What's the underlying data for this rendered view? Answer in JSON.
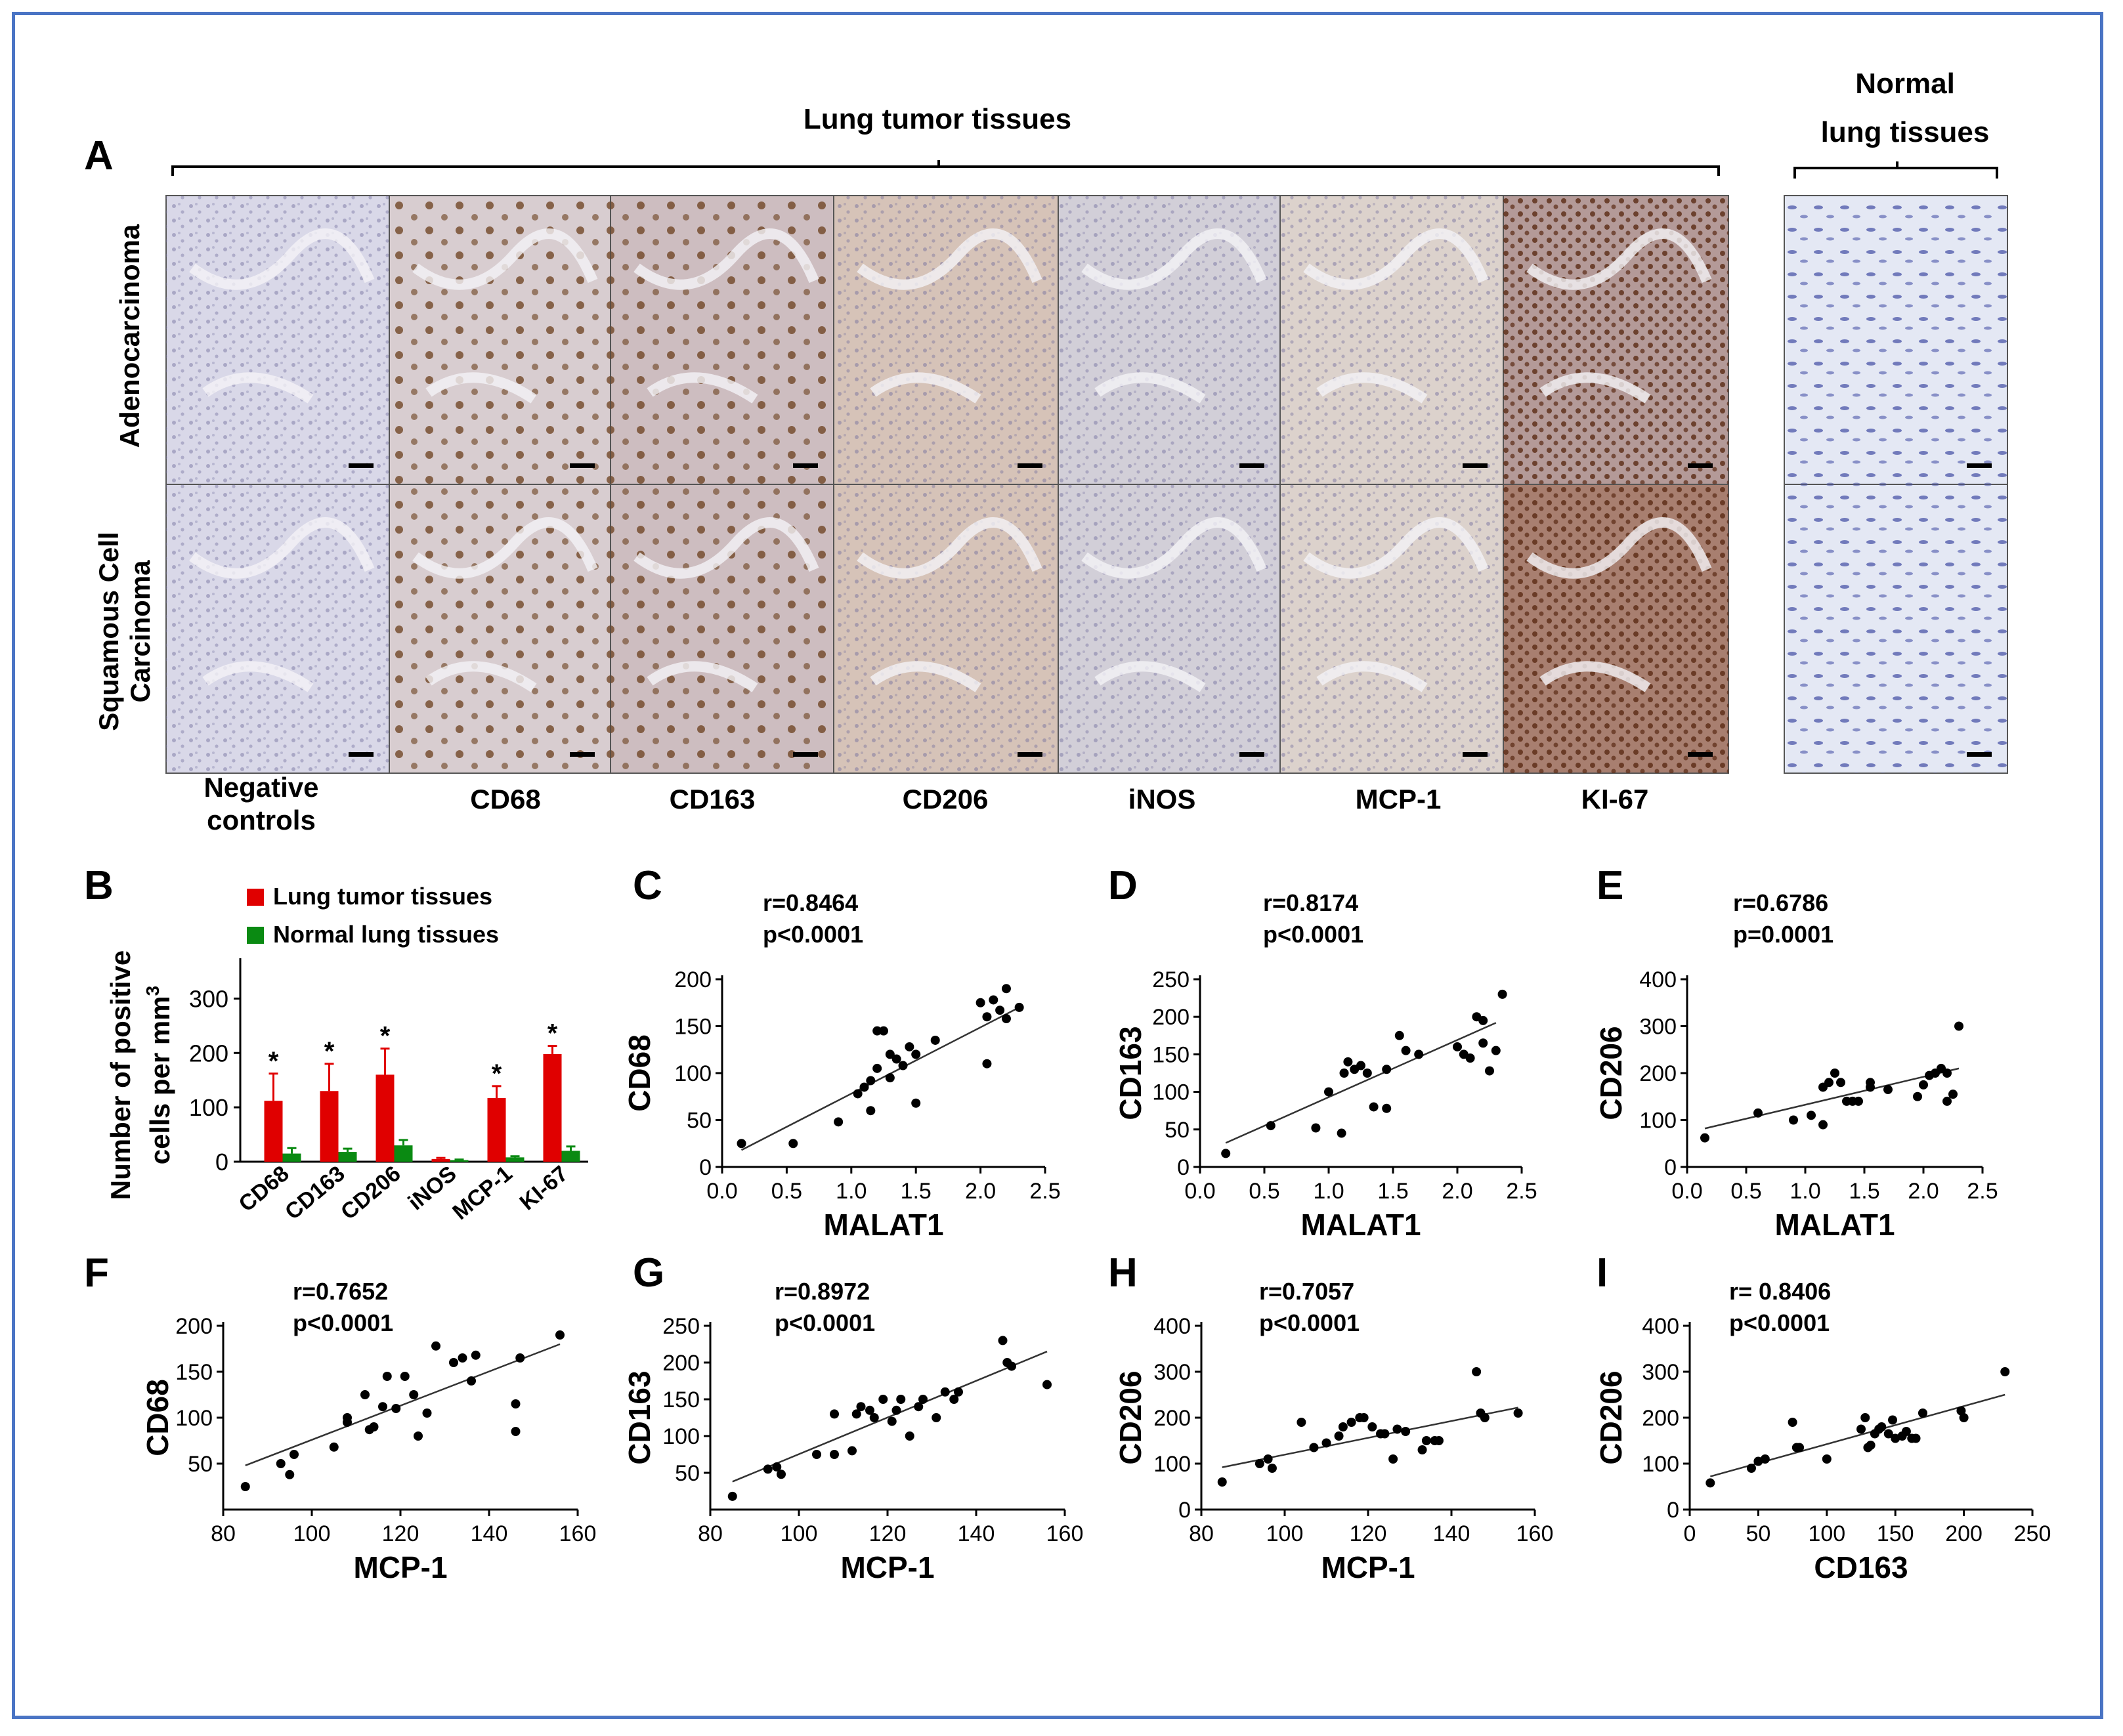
{
  "panel_letters": {
    "A": "A",
    "B": "B",
    "C": "C",
    "D": "D",
    "E": "E",
    "F": "F",
    "G": "G",
    "H": "H",
    "I": "I"
  },
  "panel_a": {
    "tumor_header": "Lung tumor tissues",
    "normal_header_line1": "Normal",
    "normal_header_line2": "lung tissues",
    "row_labels": {
      "adeno": "Adenocarcinoma",
      "squamous_line1": "Squamous Cell",
      "squamous_line2": "Carcinoma"
    },
    "column_labels": {
      "neg_line1": "Negative",
      "neg_line2": "controls",
      "c1": "CD68",
      "c2": "CD163",
      "c3": "CD206",
      "c4": "iNOS",
      "c5": "MCP-1",
      "c6": "KI-67"
    },
    "tile_tints": {
      "negative": "#d9d8e8",
      "cd68": "#d8cdd0",
      "cd163": "#cdbdc0",
      "cd206": "#d6c3b8",
      "inos": "#d2cfd8",
      "mcp1": "#dcd2cc",
      "ki67": "#b49a98",
      "ki67_sq": "#a87f70",
      "normal": "#e4e8f4",
      "brown": "#7a4a22",
      "nuclei": "#6e6a9c",
      "normal_nuclei": "#4b55a8"
    }
  },
  "colors": {
    "tumor": "#e00000",
    "normal": "#0a8a12",
    "frame": "#4a74c4",
    "text": "#000000"
  },
  "chart_data": [
    {
      "panel": "B",
      "type": "bar",
      "categories": [
        "CD68",
        "CD163",
        "CD206",
        "iNOS",
        "MCP-1",
        "KI-67"
      ],
      "series": [
        {
          "name": "Lung tumor tissues",
          "values": [
            112,
            130,
            160,
            5,
            117,
            198
          ],
          "errors": [
            50,
            50,
            48,
            2,
            22,
            15
          ],
          "significant": [
            true,
            true,
            true,
            false,
            true,
            true
          ]
        },
        {
          "name": "Normal lung tissues",
          "values": [
            15,
            18,
            30,
            3,
            8,
            20
          ],
          "errors": [
            10,
            6,
            10,
            1,
            2,
            8
          ]
        }
      ],
      "ylabel_line1": "Number of positive",
      "ylabel_line2": "cells per mm",
      "ylabel_sup": "3",
      "ylim": [
        0,
        350
      ],
      "yticks": [
        "0",
        "100",
        "200",
        "300"
      ],
      "star": "*",
      "legend_position": "top"
    },
    {
      "panel": "C",
      "type": "scatter",
      "xlabel": "MALAT1",
      "ylabel": "CD68",
      "xlim": [
        0,
        2.5
      ],
      "ylim": [
        0,
        200
      ],
      "xticks": [
        "0.0",
        "0.5",
        "1.0",
        "1.5",
        "2.0",
        "2.5"
      ],
      "yticks": [
        "0",
        "50",
        "100",
        "150",
        "200"
      ],
      "r_text": "r=0.8464",
      "p_text": "p<0.0001",
      "fit": [
        [
          0.15,
          18
        ],
        [
          2.3,
          170
        ]
      ],
      "points": [
        [
          0.15,
          25
        ],
        [
          0.55,
          25
        ],
        [
          0.9,
          48
        ],
        [
          1.05,
          78
        ],
        [
          1.1,
          85
        ],
        [
          1.15,
          92
        ],
        [
          1.15,
          60
        ],
        [
          1.2,
          105
        ],
        [
          1.2,
          145
        ],
        [
          1.25,
          145
        ],
        [
          1.3,
          120
        ],
        [
          1.3,
          95
        ],
        [
          1.35,
          115
        ],
        [
          1.4,
          108
        ],
        [
          1.45,
          128
        ],
        [
          1.5,
          120
        ],
        [
          1.5,
          68
        ],
        [
          1.65,
          135
        ],
        [
          2.0,
          175
        ],
        [
          2.05,
          110
        ],
        [
          2.05,
          160
        ],
        [
          2.1,
          178
        ],
        [
          2.15,
          167
        ],
        [
          2.2,
          190
        ],
        [
          2.2,
          158
        ],
        [
          2.3,
          170
        ]
      ]
    },
    {
      "panel": "D",
      "type": "scatter",
      "xlabel": "MALAT1",
      "ylabel": "CD163",
      "xlim": [
        0,
        2.5
      ],
      "ylim": [
        0,
        250
      ],
      "xticks": [
        "0.0",
        "0.5",
        "1.0",
        "1.5",
        "2.0",
        "2.5"
      ],
      "yticks": [
        "0",
        "50",
        "100",
        "150",
        "200",
        "250"
      ],
      "r_text": "r=0.8174",
      "p_text": "p<0.0001",
      "fit": [
        [
          0.2,
          32
        ],
        [
          2.3,
          192
        ]
      ],
      "points": [
        [
          0.2,
          18
        ],
        [
          0.55,
          55
        ],
        [
          0.9,
          52
        ],
        [
          1.0,
          100
        ],
        [
          1.1,
          45
        ],
        [
          1.12,
          125
        ],
        [
          1.15,
          140
        ],
        [
          1.2,
          130
        ],
        [
          1.25,
          135
        ],
        [
          1.3,
          125
        ],
        [
          1.35,
          80
        ],
        [
          1.45,
          78
        ],
        [
          1.45,
          130
        ],
        [
          1.55,
          175
        ],
        [
          1.6,
          155
        ],
        [
          1.7,
          150
        ],
        [
          2.0,
          160
        ],
        [
          2.05,
          150
        ],
        [
          2.1,
          145
        ],
        [
          2.15,
          200
        ],
        [
          2.2,
          195
        ],
        [
          2.2,
          165
        ],
        [
          2.25,
          128
        ],
        [
          2.3,
          155
        ],
        [
          2.35,
          230
        ]
      ]
    },
    {
      "panel": "E",
      "type": "scatter",
      "xlabel": "MALAT1",
      "ylabel": "CD206",
      "xlim": [
        0,
        2.5
      ],
      "ylim": [
        0,
        400
      ],
      "xticks": [
        "0.0",
        "0.5",
        "1.0",
        "1.5",
        "2.0",
        "2.5"
      ],
      "yticks": [
        "0",
        "100",
        "200",
        "300",
        "400"
      ],
      "r_text": "r=0.6786",
      "p_text": "p=0.0001",
      "fit": [
        [
          0.15,
          82
        ],
        [
          2.3,
          210
        ]
      ],
      "points": [
        [
          0.15,
          62
        ],
        [
          0.6,
          115
        ],
        [
          0.9,
          100
        ],
        [
          1.05,
          110
        ],
        [
          1.15,
          170
        ],
        [
          1.15,
          90
        ],
        [
          1.2,
          180
        ],
        [
          1.25,
          200
        ],
        [
          1.3,
          180
        ],
        [
          1.35,
          140
        ],
        [
          1.4,
          140
        ],
        [
          1.45,
          140
        ],
        [
          1.55,
          170
        ],
        [
          1.55,
          180
        ],
        [
          1.7,
          165
        ],
        [
          1.95,
          150
        ],
        [
          2.0,
          175
        ],
        [
          2.05,
          195
        ],
        [
          2.1,
          200
        ],
        [
          2.15,
          210
        ],
        [
          2.2,
          200
        ],
        [
          2.2,
          140
        ],
        [
          2.25,
          155
        ],
        [
          2.3,
          300
        ]
      ]
    },
    {
      "panel": "F",
      "type": "scatter",
      "xlabel": "MCP-1",
      "ylabel": "CD68",
      "xlim": [
        80,
        160
      ],
      "ylim": [
        0,
        200
      ],
      "xticks": [
        "80",
        "100",
        "120",
        "140",
        "160"
      ],
      "yticks": [
        "50",
        "100",
        "150",
        "200"
      ],
      "r_text": "r=0.7652",
      "p_text": "p<0.0001",
      "fit": [
        [
          85,
          48
        ],
        [
          156,
          180
        ]
      ],
      "points": [
        [
          85,
          25
        ],
        [
          93,
          50
        ],
        [
          95,
          38
        ],
        [
          96,
          60
        ],
        [
          105,
          68
        ],
        [
          108,
          100
        ],
        [
          108,
          95
        ],
        [
          112,
          125
        ],
        [
          113,
          87
        ],
        [
          114,
          90
        ],
        [
          116,
          112
        ],
        [
          117,
          145
        ],
        [
          119,
          110
        ],
        [
          121,
          145
        ],
        [
          123,
          125
        ],
        [
          124,
          80
        ],
        [
          126,
          105
        ],
        [
          128,
          178
        ],
        [
          132,
          160
        ],
        [
          134,
          165
        ],
        [
          136,
          140
        ],
        [
          137,
          168
        ],
        [
          146,
          115
        ],
        [
          146,
          85
        ],
        [
          147,
          165
        ],
        [
          156,
          190
        ]
      ]
    },
    {
      "panel": "G",
      "type": "scatter",
      "xlabel": "MCP-1",
      "ylabel": "CD163",
      "xlim": [
        80,
        160
      ],
      "ylim": [
        0,
        250
      ],
      "xticks": [
        "80",
        "100",
        "120",
        "140",
        "160"
      ],
      "yticks": [
        "50",
        "100",
        "150",
        "200",
        "250"
      ],
      "r_text": "r=0.8972",
      "p_text": "p<0.0001",
      "fit": [
        [
          85,
          38
        ],
        [
          156,
          215
        ]
      ],
      "points": [
        [
          85,
          18
        ],
        [
          93,
          55
        ],
        [
          95,
          58
        ],
        [
          96,
          48
        ],
        [
          104,
          75
        ],
        [
          108,
          75
        ],
        [
          108,
          130
        ],
        [
          112,
          80
        ],
        [
          113,
          130
        ],
        [
          114,
          140
        ],
        [
          116,
          135
        ],
        [
          117,
          125
        ],
        [
          119,
          150
        ],
        [
          121,
          120
        ],
        [
          122,
          135
        ],
        [
          123,
          150
        ],
        [
          125,
          100
        ],
        [
          127,
          140
        ],
        [
          128,
          150
        ],
        [
          131,
          125
        ],
        [
          133,
          160
        ],
        [
          135,
          150
        ],
        [
          136,
          160
        ],
        [
          146,
          230
        ],
        [
          147,
          200
        ],
        [
          148,
          195
        ],
        [
          156,
          170
        ]
      ]
    },
    {
      "panel": "H",
      "type": "scatter",
      "xlabel": "MCP-1",
      "ylabel": "CD206",
      "xlim": [
        80,
        160
      ],
      "ylim": [
        0,
        400
      ],
      "xticks": [
        "80",
        "100",
        "120",
        "140",
        "160"
      ],
      "yticks": [
        "0",
        "100",
        "200",
        "300",
        "400"
      ],
      "r_text": "r=0.7057",
      "p_text": "p<0.0001",
      "fit": [
        [
          85,
          92
        ],
        [
          156,
          222
        ]
      ],
      "points": [
        [
          85,
          60
        ],
        [
          94,
          100
        ],
        [
          96,
          110
        ],
        [
          97,
          90
        ],
        [
          104,
          190
        ],
        [
          107,
          135
        ],
        [
          110,
          145
        ],
        [
          113,
          160
        ],
        [
          114,
          180
        ],
        [
          116,
          190
        ],
        [
          118,
          200
        ],
        [
          119,
          200
        ],
        [
          121,
          180
        ],
        [
          123,
          165
        ],
        [
          124,
          165
        ],
        [
          126,
          110
        ],
        [
          127,
          175
        ],
        [
          129,
          170
        ],
        [
          133,
          130
        ],
        [
          134,
          150
        ],
        [
          136,
          150
        ],
        [
          137,
          150
        ],
        [
          146,
          300
        ],
        [
          147,
          210
        ],
        [
          148,
          200
        ],
        [
          156,
          210
        ]
      ]
    },
    {
      "panel": "I",
      "type": "scatter",
      "xlabel": "CD163",
      "ylabel": "CD206",
      "xlim": [
        0,
        250
      ],
      "ylim": [
        0,
        400
      ],
      "xticks": [
        "0",
        "50",
        "100",
        "150",
        "200",
        "250"
      ],
      "yticks": [
        "0",
        "100",
        "200",
        "300",
        "400"
      ],
      "r_text": "r= 0.8406",
      "p_text": "p<0.0001",
      "fit": [
        [
          15,
          72
        ],
        [
          230,
          250
        ]
      ],
      "points": [
        [
          15,
          58
        ],
        [
          45,
          90
        ],
        [
          50,
          105
        ],
        [
          55,
          110
        ],
        [
          75,
          190
        ],
        [
          78,
          135
        ],
        [
          80,
          135
        ],
        [
          100,
          110
        ],
        [
          125,
          175
        ],
        [
          128,
          200
        ],
        [
          130,
          135
        ],
        [
          132,
          140
        ],
        [
          135,
          165
        ],
        [
          138,
          175
        ],
        [
          140,
          180
        ],
        [
          145,
          165
        ],
        [
          148,
          195
        ],
        [
          150,
          155
        ],
        [
          155,
          160
        ],
        [
          158,
          170
        ],
        [
          162,
          155
        ],
        [
          165,
          155
        ],
        [
          170,
          210
        ],
        [
          198,
          215
        ],
        [
          200,
          200
        ],
        [
          230,
          300
        ]
      ]
    }
  ]
}
